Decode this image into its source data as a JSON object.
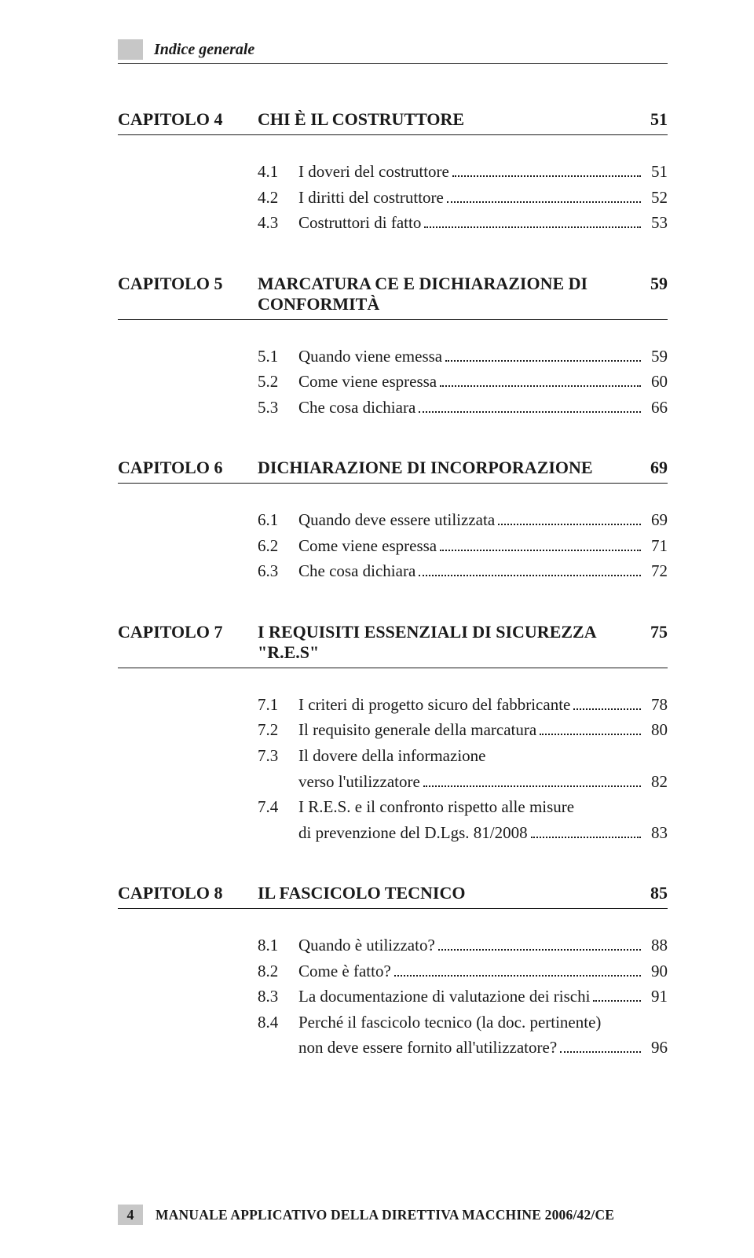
{
  "header": {
    "title": "Indice generale"
  },
  "chapters": [
    {
      "label": "CAPITOLO 4",
      "title": "CHI È IL COSTRUTTORE",
      "page": "51",
      "sections": [
        {
          "num": "4.1",
          "lines": [
            "I doveri del costruttore"
          ],
          "page": "51"
        },
        {
          "num": "4.2",
          "lines": [
            "I diritti del costruttore"
          ],
          "page": "52"
        },
        {
          "num": "4.3",
          "lines": [
            "Costruttori di fatto"
          ],
          "page": "53"
        }
      ]
    },
    {
      "label": "CAPITOLO 5",
      "title": "MARCATURA CE E DICHIARAZIONE DI CONFORMITÀ",
      "page": "59",
      "sections": [
        {
          "num": "5.1",
          "lines": [
            "Quando viene emessa"
          ],
          "page": "59"
        },
        {
          "num": "5.2",
          "lines": [
            "Come viene espressa"
          ],
          "page": "60"
        },
        {
          "num": "5.3",
          "lines": [
            "Che cosa dichiara"
          ],
          "page": "66"
        }
      ]
    },
    {
      "label": "CAPITOLO 6",
      "title": "DICHIARAZIONE DI INCORPORAZIONE",
      "page": "69",
      "sections": [
        {
          "num": "6.1",
          "lines": [
            "Quando deve essere utilizzata"
          ],
          "page": "69"
        },
        {
          "num": "6.2",
          "lines": [
            "Come viene espressa"
          ],
          "page": "71"
        },
        {
          "num": "6.3",
          "lines": [
            "Che cosa dichiara"
          ],
          "page": "72"
        }
      ]
    },
    {
      "label": "CAPITOLO 7",
      "title": "I REQUISITI ESSENZIALI DI SICUREZZA \"R.E.S\"",
      "page": "75",
      "sections": [
        {
          "num": "7.1",
          "lines": [
            "I criteri di progetto sicuro del fabbricante"
          ],
          "page": "78"
        },
        {
          "num": "7.2",
          "lines": [
            "Il requisito generale della marcatura"
          ],
          "page": "80"
        },
        {
          "num": "7.3",
          "lines": [
            "Il dovere della informazione",
            "verso l'utilizzatore"
          ],
          "page": "82"
        },
        {
          "num": "7.4",
          "lines": [
            "I R.E.S. e il confronto rispetto alle misure",
            "di prevenzione del D.Lgs. 81/2008"
          ],
          "page": "83"
        }
      ]
    },
    {
      "label": "CAPITOLO 8",
      "title": "IL FASCICOLO TECNICO",
      "page": "85",
      "sections": [
        {
          "num": "8.1",
          "lines": [
            "Quando è utilizzato?"
          ],
          "page": "88"
        },
        {
          "num": "8.2",
          "lines": [
            "Come è fatto?"
          ],
          "page": "90"
        },
        {
          "num": "8.3",
          "lines": [
            "La documentazione di valutazione dei rischi"
          ],
          "page": "91"
        },
        {
          "num": "8.4",
          "lines": [
            "Perché il fascicolo tecnico (la doc. pertinente)",
            "non deve essere fornito all'utilizzatore?"
          ],
          "page": "96"
        }
      ]
    }
  ],
  "footer": {
    "page_number": "4",
    "text": "MANUALE APPLICATIVO DELLA DIRETTIVA MACCHINE 2006/42/CE"
  },
  "style": {
    "background_color": "#ffffff",
    "text_color": "#1a1a1a",
    "square_color": "#c7c7c7",
    "rule_color": "#1a1a1a",
    "body_font_size_pt": 16,
    "chapter_font_size_pt": 17,
    "font_family": "Palatino / Book Antiqua serif"
  }
}
